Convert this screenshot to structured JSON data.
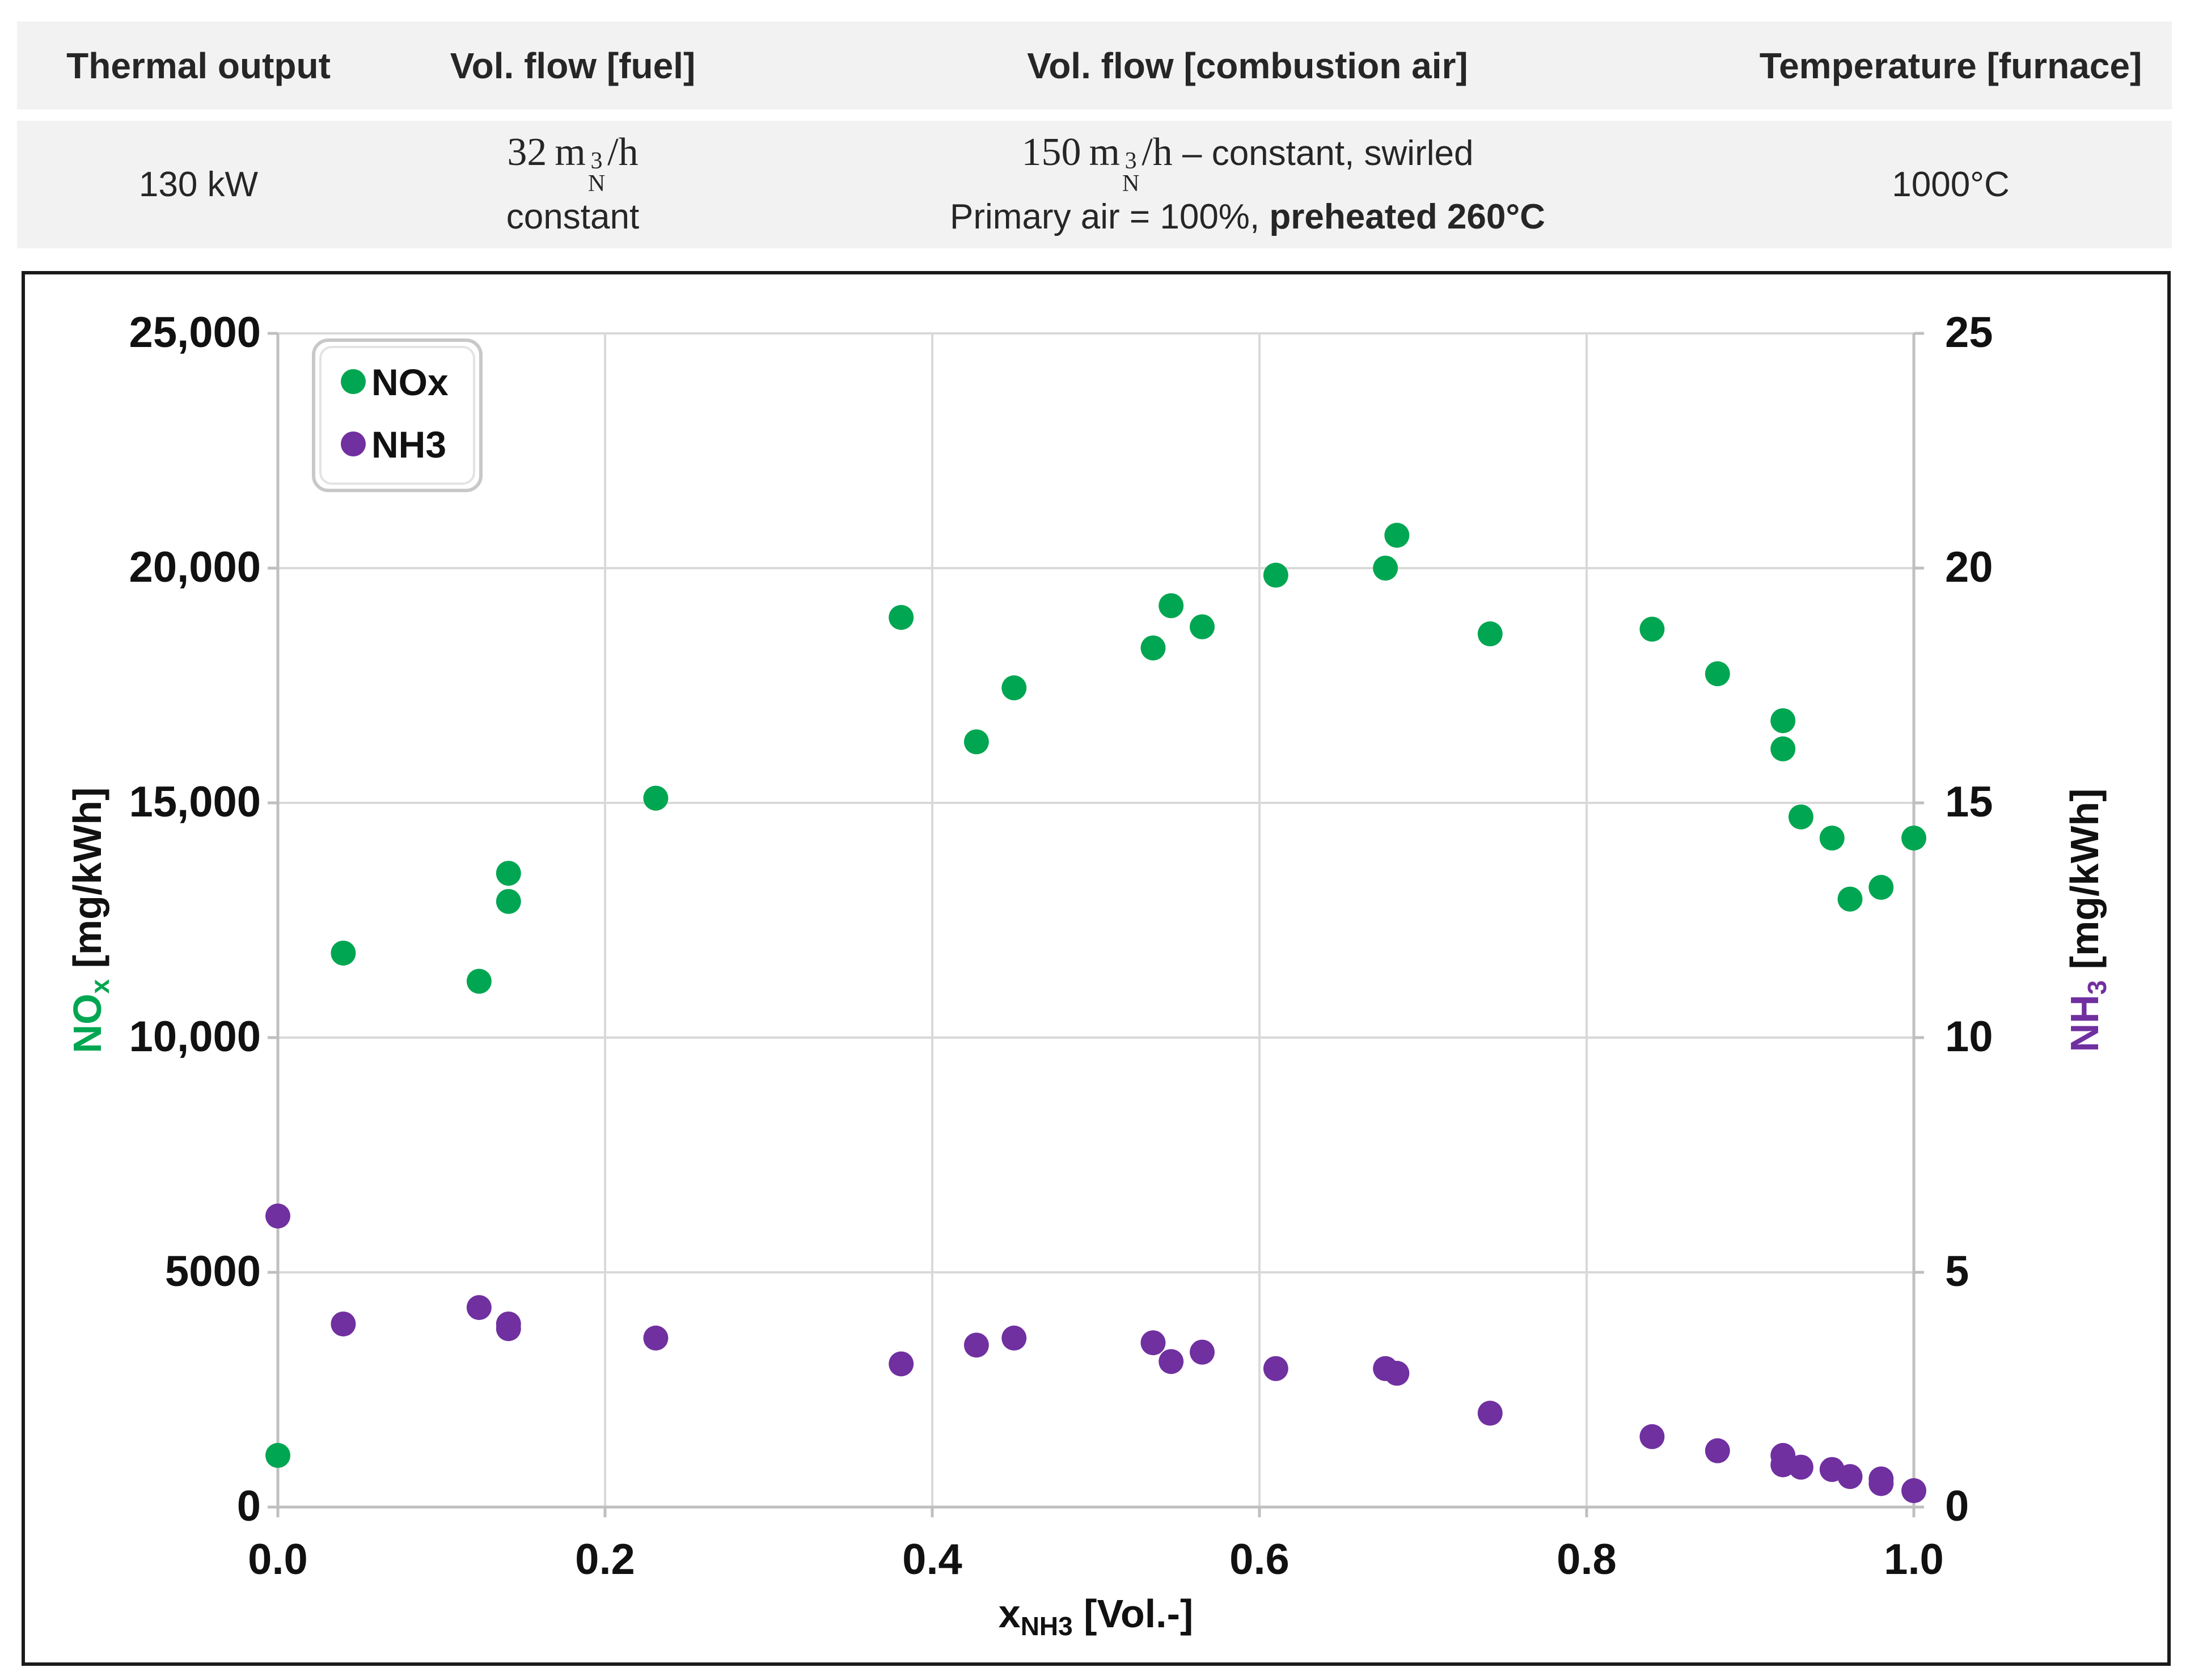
{
  "table": {
    "headers": [
      "Thermal output",
      "Vol. flow [fuel]",
      "Vol. flow [combustion air]",
      "Temperature [furnace]"
    ],
    "thermal_output": "130 kW",
    "fuel_value": "32",
    "fuel_unit_m": "m",
    "fuel_unit_sup": "3",
    "fuel_unit_sub": "N",
    "fuel_unit_rest": "/h",
    "fuel_note": "constant",
    "air_value": "150",
    "air_unit_m": "m",
    "air_unit_sup": "3",
    "air_unit_sub": "N",
    "air_unit_rest": "/h",
    "air_note_a": " – constant, swirled",
    "air_line2_prefix": "Primary air = 100%, ",
    "air_line2_bold": "preheated 260°C",
    "furnace_temp": "1000°C"
  },
  "chart_data": {
    "type": "scatter",
    "xlabel_main": "x",
    "xlabel_sub": "NH3",
    "xlabel_rest": " [Vol.-]",
    "ylabel_left_main": "NO",
    "ylabel_left_sub": "x",
    "ylabel_left_rest": " [mg/kWh]",
    "ylabel_right_main": "NH",
    "ylabel_right_sub": "3",
    "ylabel_right_rest": " [mg/kWh]",
    "xlim": [
      0,
      1
    ],
    "ylim_left": [
      0,
      25000
    ],
    "ylim_right": [
      0,
      25
    ],
    "x_ticks": [
      0.0,
      0.2,
      0.4,
      0.6,
      0.8,
      1.0
    ],
    "x_tick_labels": [
      "0.0",
      "0.2",
      "0.4",
      "0.6",
      "0.8",
      "1.0"
    ],
    "y_left_ticks": [
      0,
      5000,
      10000,
      15000,
      20000,
      25000
    ],
    "y_left_tick_labels": [
      "0",
      "5000",
      "10,000",
      "15,000",
      "20,000",
      "25,000"
    ],
    "y_right_ticks": [
      0,
      5,
      10,
      15,
      20,
      25
    ],
    "y_right_tick_labels": [
      "0",
      "5",
      "10",
      "15",
      "20",
      "25"
    ],
    "grid": true,
    "legend_position": "top-left",
    "series": [
      {
        "name": "NOx",
        "axis": "left",
        "color": "#00a651",
        "points": [
          [
            0.0,
            1100
          ],
          [
            0.04,
            11800
          ],
          [
            0.123,
            11200
          ],
          [
            0.141,
            13500
          ],
          [
            0.141,
            12900
          ],
          [
            0.231,
            15100
          ],
          [
            0.381,
            18950
          ],
          [
            0.427,
            16300
          ],
          [
            0.45,
            17450
          ],
          [
            0.535,
            18300
          ],
          [
            0.546,
            19200
          ],
          [
            0.565,
            18750
          ],
          [
            0.61,
            19850
          ],
          [
            0.677,
            20000
          ],
          [
            0.684,
            20700
          ],
          [
            0.741,
            18600
          ],
          [
            0.84,
            18700
          ],
          [
            0.88,
            17750
          ],
          [
            0.92,
            16750
          ],
          [
            0.92,
            16150
          ],
          [
            0.931,
            14700
          ],
          [
            0.95,
            14250
          ],
          [
            0.961,
            12950
          ],
          [
            0.98,
            13200
          ],
          [
            1.0,
            14250
          ]
        ]
      },
      {
        "name": "NH3",
        "axis": "right",
        "color": "#7030a0",
        "points": [
          [
            0.0,
            6.2
          ],
          [
            0.04,
            3.9
          ],
          [
            0.123,
            4.25
          ],
          [
            0.141,
            3.9
          ],
          [
            0.141,
            3.8
          ],
          [
            0.231,
            3.6
          ],
          [
            0.381,
            3.05
          ],
          [
            0.427,
            3.45
          ],
          [
            0.45,
            3.6
          ],
          [
            0.535,
            3.5
          ],
          [
            0.546,
            3.1
          ],
          [
            0.565,
            3.3
          ],
          [
            0.61,
            2.95
          ],
          [
            0.677,
            2.95
          ],
          [
            0.684,
            2.85
          ],
          [
            0.741,
            2.0
          ],
          [
            0.84,
            1.5
          ],
          [
            0.88,
            1.2
          ],
          [
            0.92,
            1.1
          ],
          [
            0.92,
            0.9
          ],
          [
            0.931,
            0.85
          ],
          [
            0.95,
            0.8
          ],
          [
            0.961,
            0.65
          ],
          [
            0.98,
            0.6
          ],
          [
            0.98,
            0.5
          ],
          [
            1.0,
            0.35
          ]
        ]
      }
    ]
  }
}
